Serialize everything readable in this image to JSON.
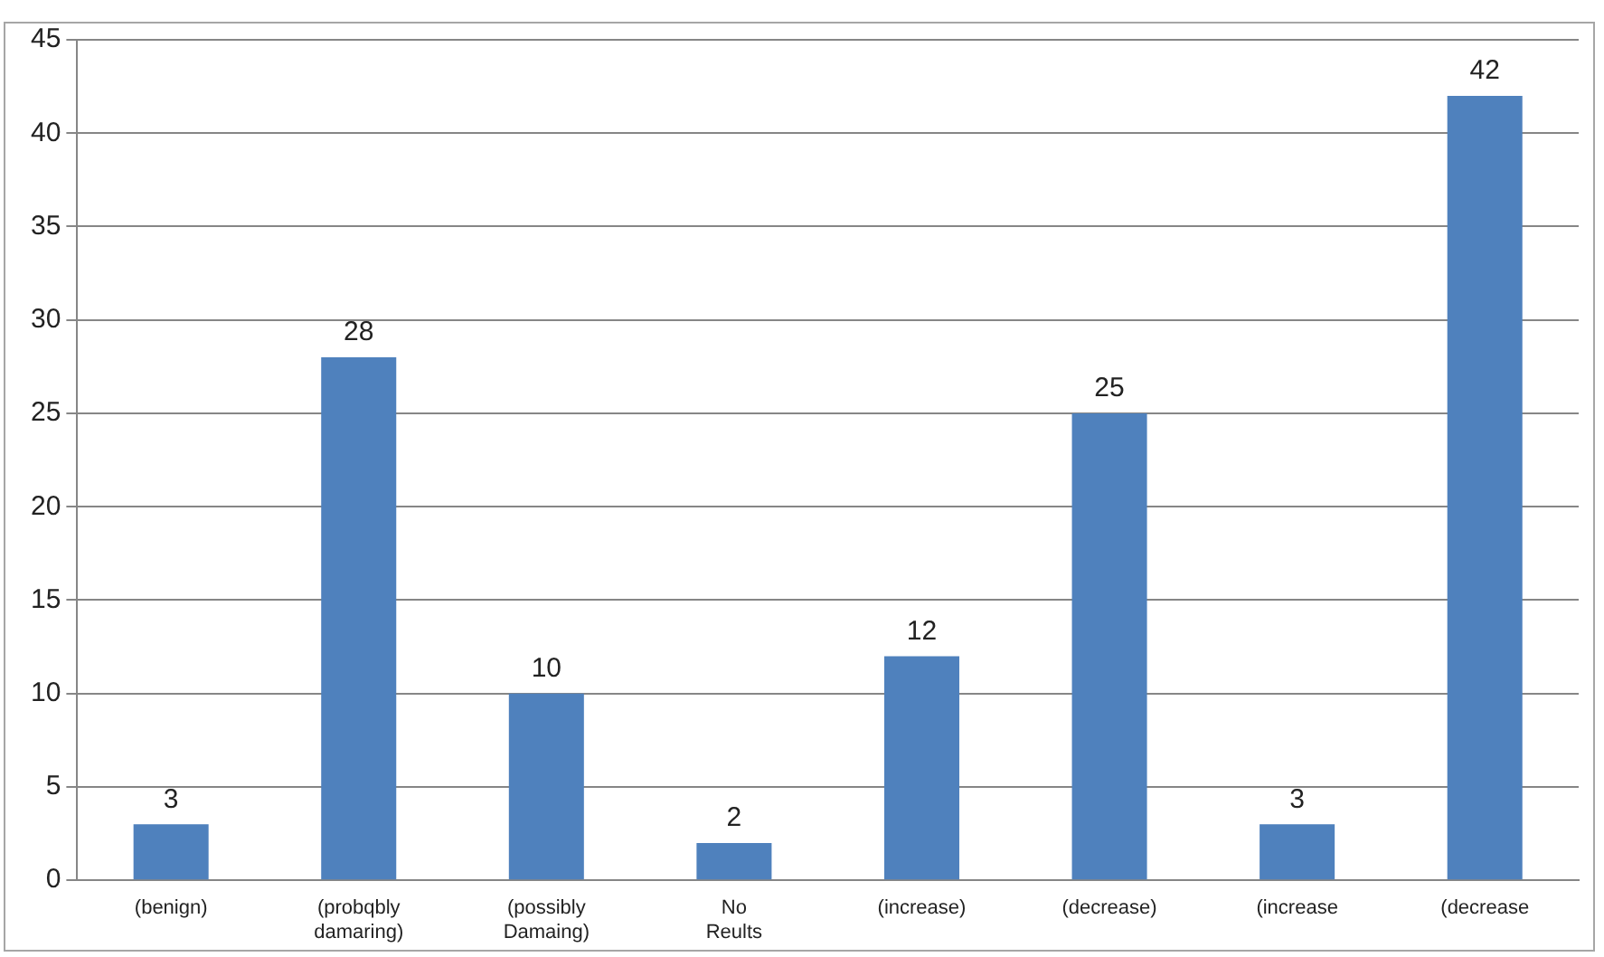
{
  "chart_data": {
    "type": "bar",
    "categories": [
      "(benign)",
      "(probqbly damaring)",
      "(possibly Damaing)",
      "No Reults",
      "(increase)",
      "(decrease)",
      "(increase",
      "(decrease"
    ],
    "values": [
      3,
      28,
      10,
      2,
      12,
      25,
      3,
      42
    ],
    "color": "#4f81bd",
    "ylim": [
      0,
      45
    ],
    "yticks": [
      0,
      5,
      10,
      15,
      20,
      25,
      30,
      35,
      40,
      45
    ],
    "grid": "y",
    "legend": false,
    "data_labels": true
  }
}
